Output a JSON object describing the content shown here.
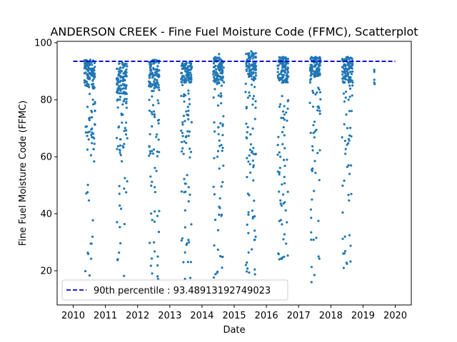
{
  "chart_data": {
    "type": "scatter",
    "title": "ANDERSON CREEK - Fine Fuel Moisture Code (FFMC), Scatterplot",
    "xlabel": "Date",
    "ylabel": "Fine Fuel Moisture Code (FFMC)",
    "xlim": [
      2010.0,
      2020.0
    ],
    "ylim": [
      8.0,
      100.5
    ],
    "x_ticks": [
      "2010",
      "2011",
      "2012",
      "2013",
      "2014",
      "2015",
      "2016",
      "2017",
      "2018",
      "2019",
      "2020"
    ],
    "y_ticks": [
      20,
      40,
      60,
      80,
      100
    ],
    "grid": false,
    "legend_position": "lower-left",
    "point_color": "#1f77b4",
    "reference_line": {
      "label": "90th percentile : 93.48913192749023",
      "value": 93.48913192749023,
      "color": "#0000cc",
      "style": "dashed"
    },
    "seasons": [
      {
        "year": 2010,
        "start": 2010.35,
        "end": 2010.68,
        "dense_low": 84,
        "dense_high": 94,
        "min": 16,
        "max": 94
      },
      {
        "year": 2011,
        "start": 2011.35,
        "end": 2011.68,
        "dense_low": 82,
        "dense_high": 93,
        "min": 13,
        "max": 93
      },
      {
        "year": 2012,
        "start": 2012.35,
        "end": 2012.68,
        "dense_low": 84,
        "dense_high": 94,
        "min": 13.5,
        "max": 94
      },
      {
        "year": 2013,
        "start": 2013.35,
        "end": 2013.68,
        "dense_low": 86,
        "dense_high": 93,
        "min": 14,
        "max": 93
      },
      {
        "year": 2014,
        "start": 2014.35,
        "end": 2014.68,
        "dense_low": 86,
        "dense_high": 95,
        "min": 12,
        "max": 96
      },
      {
        "year": 2015,
        "start": 2015.35,
        "end": 2015.68,
        "dense_low": 87,
        "dense_high": 96.5,
        "min": 16,
        "max": 97
      },
      {
        "year": 2016,
        "start": 2016.35,
        "end": 2016.68,
        "dense_low": 86,
        "dense_high": 95,
        "min": 24,
        "max": 95
      },
      {
        "year": 2017,
        "start": 2017.35,
        "end": 2017.68,
        "dense_low": 88,
        "dense_high": 95,
        "min": 16,
        "max": 95
      },
      {
        "year": 2018,
        "start": 2018.35,
        "end": 2018.68,
        "dense_low": 86,
        "dense_high": 95,
        "min": 21,
        "max": 95
      }
    ],
    "extra_points": [
      {
        "x": 2019.35,
        "y": 90.5
      },
      {
        "x": 2019.35,
        "y": 89.8
      },
      {
        "x": 2019.35,
        "y": 87.0
      },
      {
        "x": 2019.35,
        "y": 86.0
      },
      {
        "x": 2019.36,
        "y": 85.5
      }
    ]
  }
}
